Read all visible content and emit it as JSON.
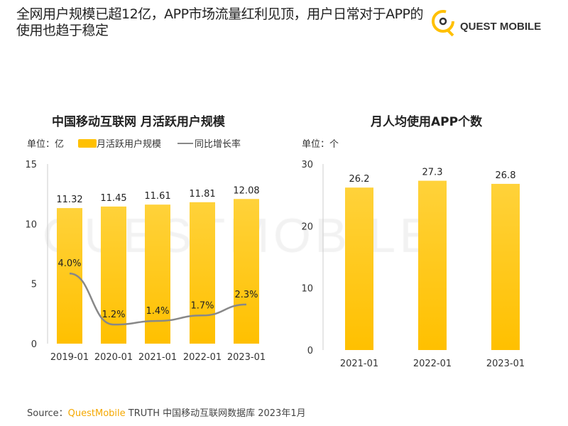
{
  "header": {
    "title": "全网用户规模已超12亿，APP市场流量红利见顶，用户日常对于APP的使用也趋于稳定",
    "logo_text": "QUEST MOBILE"
  },
  "watermark": "QUESTMOBILE",
  "colors": {
    "bar": "#FFC000",
    "bar_top": "#FFD23A",
    "line": "#888888"
  },
  "chart_data": [
    {
      "type": "bar",
      "title": "中国移动互联网 月活跃用户规模",
      "unit_label": "单位：亿",
      "categories": [
        "2019-01",
        "2020-01",
        "2021-01",
        "2022-01",
        "2023-01"
      ],
      "series": [
        {
          "name": "月活跃用户规模",
          "values": [
            11.32,
            11.45,
            11.61,
            11.81,
            12.08
          ]
        },
        {
          "name": "同比增长率",
          "type": "line",
          "values": [
            4.0,
            1.2,
            1.4,
            1.7,
            2.3
          ],
          "labels": [
            "4.0%",
            "1.2%",
            "1.4%",
            "1.7%",
            "2.3%"
          ]
        }
      ],
      "ylim": [
        0,
        15
      ],
      "yticks": [
        0,
        5,
        10,
        15
      ],
      "legend": "top"
    },
    {
      "type": "bar",
      "title": "月人均使用APP个数",
      "unit_label": "单位：个",
      "categories": [
        "2021-01",
        "2022-01",
        "2023-01"
      ],
      "values": [
        26.2,
        27.3,
        26.8
      ],
      "ylim": [
        0,
        30
      ],
      "yticks": [
        0,
        10,
        20,
        30
      ]
    }
  ],
  "footer": {
    "prefix": "Source：",
    "brand": "QuestMobile",
    "rest": " TRUTH 中国移动互联网数据库 2023年1月"
  }
}
